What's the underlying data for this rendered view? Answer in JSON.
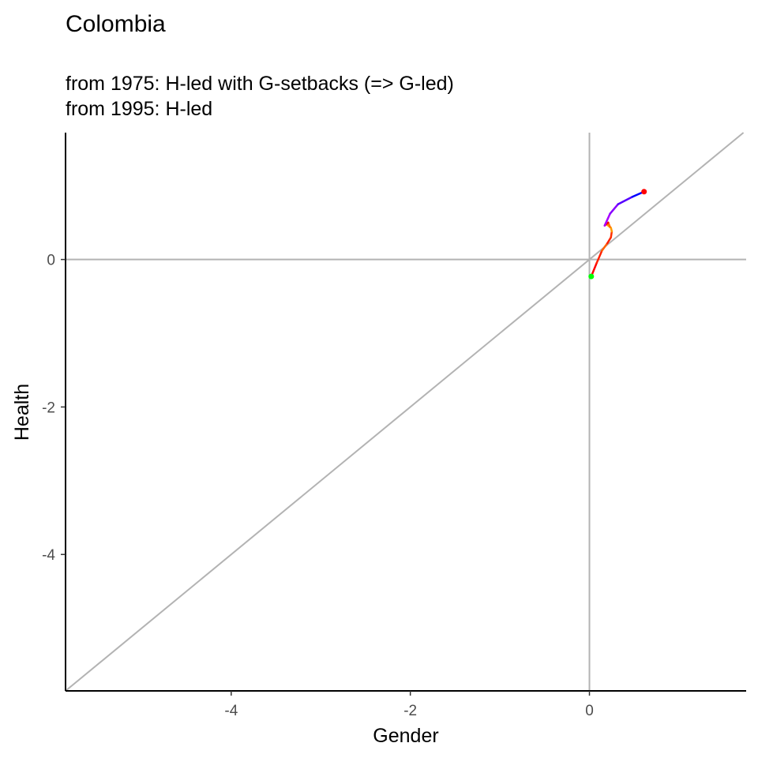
{
  "chart_data": {
    "type": "line",
    "title": "Colombia",
    "subtitle_lines": [
      "from 1975:  H-led with G-setbacks (=> G-led)",
      "from 1995:  H-led"
    ],
    "xlabel": "Gender",
    "ylabel": "Health",
    "xlim": [
      -5.85,
      1.75
    ],
    "ylim": [
      -5.85,
      1.72
    ],
    "x_ticks": [
      -4,
      -2,
      0
    ],
    "y_ticks": [
      -4,
      -2,
      0
    ],
    "reference_lines": {
      "vertical_x": 0,
      "horizontal_y": 0,
      "diagonal": "y = x",
      "color": "#b3b3b3"
    },
    "grid": false,
    "legend": "none",
    "start_point": {
      "x": 0.02,
      "y": -0.23,
      "color": "#00ff00"
    },
    "end_point": {
      "x": 0.61,
      "y": 0.92,
      "color": "#ff0000"
    },
    "series": [
      {
        "points": [
          {
            "x": 0.02,
            "y": -0.23,
            "color": "#ff0000"
          },
          {
            "x": 0.08,
            "y": -0.05,
            "color": "#ff0000"
          },
          {
            "x": 0.14,
            "y": 0.12,
            "color": "#ff2000"
          },
          {
            "x": 0.2,
            "y": 0.22,
            "color": "#ff6000"
          },
          {
            "x": 0.24,
            "y": 0.3,
            "color": "#ff2000"
          },
          {
            "x": 0.25,
            "y": 0.38,
            "color": "#ff3000"
          },
          {
            "x": 0.24,
            "y": 0.43,
            "color": "#ff9900"
          },
          {
            "x": 0.19,
            "y": 0.48,
            "color": "#ffa500"
          },
          {
            "x": 0.23,
            "y": 0.44,
            "color": "#ffa500"
          },
          {
            "x": 0.21,
            "y": 0.5,
            "color": "#ff7000"
          },
          {
            "x": 0.17,
            "y": 0.46,
            "color": "#ff0000"
          },
          {
            "x": 0.23,
            "y": 0.62,
            "color": "#aa00ff"
          },
          {
            "x": 0.32,
            "y": 0.75,
            "color": "#8800ff"
          },
          {
            "x": 0.48,
            "y": 0.85,
            "color": "#5500ff"
          },
          {
            "x": 0.61,
            "y": 0.92,
            "color": "#0000ff"
          }
        ]
      }
    ]
  }
}
